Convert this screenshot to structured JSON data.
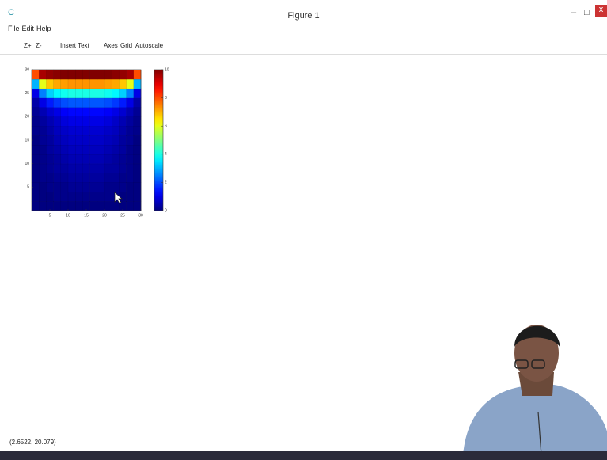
{
  "window": {
    "title": "Figure 1",
    "menu": [
      "File",
      "Edit",
      "Help"
    ],
    "toolbar": [
      "Z+",
      "Z-",
      "Insert Text",
      "Axes",
      "Grid",
      "Autoscale"
    ],
    "status": "(2.6522, 20.079)"
  },
  "chart_data": {
    "type": "heatmap",
    "colormap": "jet",
    "xlim": [
      0,
      30
    ],
    "ylim": [
      0,
      30
    ],
    "xticks": [
      5,
      10,
      15,
      20,
      25,
      30
    ],
    "yticks": [
      5,
      10,
      15,
      20,
      25,
      30
    ],
    "colorbar": {
      "lim": [
        0,
        10
      ],
      "ticks": [
        0,
        2,
        4,
        6,
        8,
        10
      ]
    },
    "z": [
      [
        0,
        0,
        0,
        0,
        0,
        0,
        0,
        0,
        0,
        0,
        0,
        0,
        0,
        0,
        0
      ],
      [
        0,
        0,
        0,
        0.1,
        0.1,
        0.1,
        0.1,
        0.1,
        0.1,
        0.1,
        0.1,
        0.1,
        0,
        0,
        0
      ],
      [
        0,
        0,
        0.1,
        0.1,
        0.1,
        0.2,
        0.2,
        0.2,
        0.2,
        0.2,
        0.1,
        0.1,
        0.1,
        0,
        0
      ],
      [
        0,
        0.1,
        0.1,
        0.2,
        0.2,
        0.3,
        0.3,
        0.3,
        0.3,
        0.3,
        0.2,
        0.2,
        0.1,
        0.1,
        0
      ],
      [
        0,
        0.1,
        0.2,
        0.3,
        0.3,
        0.4,
        0.4,
        0.4,
        0.4,
        0.4,
        0.3,
        0.3,
        0.2,
        0.1,
        0
      ],
      [
        0,
        0.1,
        0.2,
        0.3,
        0.4,
        0.5,
        0.5,
        0.5,
        0.5,
        0.5,
        0.4,
        0.3,
        0.2,
        0.1,
        0
      ],
      [
        0,
        0.1,
        0.3,
        0.4,
        0.5,
        0.6,
        0.6,
        0.6,
        0.6,
        0.6,
        0.5,
        0.4,
        0.3,
        0.1,
        0
      ],
      [
        0,
        0.2,
        0.3,
        0.5,
        0.6,
        0.7,
        0.7,
        0.7,
        0.7,
        0.7,
        0.6,
        0.5,
        0.3,
        0.2,
        0
      ],
      [
        0.1,
        0.2,
        0.4,
        0.6,
        0.7,
        0.8,
        0.8,
        0.8,
        0.8,
        0.8,
        0.7,
        0.6,
        0.4,
        0.2,
        0.1
      ],
      [
        0.1,
        0.3,
        0.5,
        0.7,
        0.9,
        1,
        1,
        1,
        1,
        1,
        0.9,
        0.7,
        0.5,
        0.3,
        0.1
      ],
      [
        0.2,
        0.5,
        0.8,
        1,
        1.2,
        1.3,
        1.3,
        1.3,
        1.3,
        1.3,
        1.2,
        1,
        0.8,
        0.5,
        0.2
      ],
      [
        0.4,
        1,
        1.5,
        1.8,
        2,
        2.1,
        2.1,
        2.1,
        2.1,
        2.1,
        2,
        1.8,
        1.5,
        1,
        0.4
      ],
      [
        1,
        2.5,
        3.3,
        3.7,
        3.9,
        4,
        4,
        4,
        4,
        4,
        3.9,
        3.7,
        3.3,
        2.5,
        1
      ],
      [
        3,
        6,
        6.8,
        7.1,
        7.2,
        7.3,
        7.3,
        7.3,
        7.3,
        7.3,
        7.2,
        7.1,
        6.8,
        6,
        3
      ],
      [
        8,
        9.6,
        9.8,
        9.9,
        10,
        10,
        10,
        10,
        10,
        10,
        10,
        9.9,
        9.8,
        9.6,
        8
      ]
    ]
  }
}
